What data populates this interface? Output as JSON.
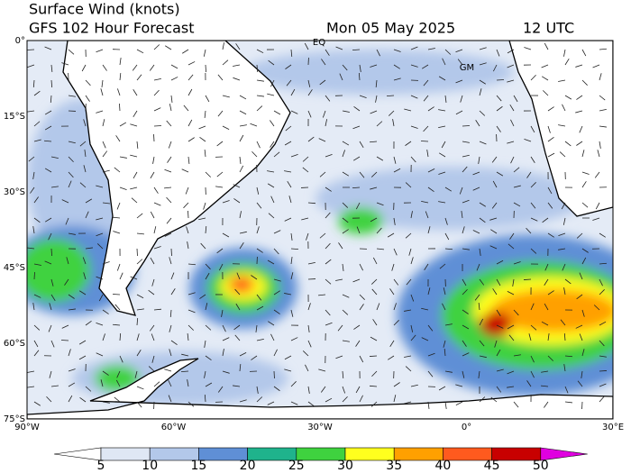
{
  "header": {
    "title": "Surface Wind (knots)",
    "forecast": "GFS 102 Hour Forecast",
    "date": "Mon 05 May 2025",
    "time": "12 UTC"
  },
  "map": {
    "lat_labels": [
      "0°",
      "15°S",
      "30°S",
      "45°S",
      "60°S",
      "75°S"
    ],
    "lon_labels": [
      "90°W",
      "60°W",
      "30°W",
      "0°",
      "30°E"
    ],
    "labels": [
      "EQ",
      "GM"
    ]
  },
  "colorbar": {
    "ticks": [
      5,
      10,
      15,
      20,
      25,
      30,
      35,
      40,
      45,
      50
    ],
    "colors": [
      "#ffffff",
      "#dfe7f4",
      "#b3c8ea",
      "#5f8fd6",
      "#1fb38c",
      "#3fd23f",
      "#ffff1e",
      "#ffa000",
      "#ff5a1e",
      "#c80000",
      "#e000e0"
    ]
  }
}
